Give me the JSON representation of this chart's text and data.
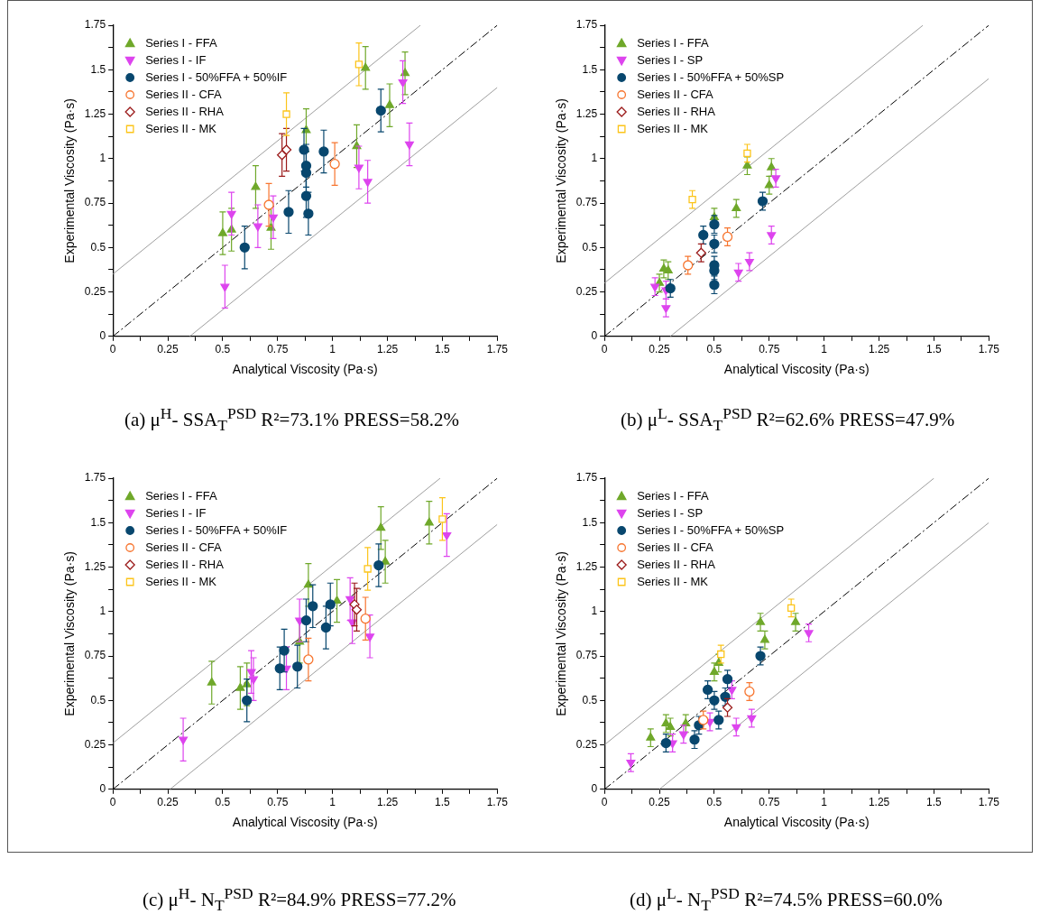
{
  "chart_data": [
    {
      "type": "scatter",
      "xlabel": "Analytical Viscosity (Pa·s)",
      "ylabel": "Experimental Viscosity (Pa·s)",
      "annotations": [
        "(a)  μ$^{H}$- SSA$_{T}$$^{PSD}$ R²=73.1% PRESS=58.2%"
      ],
      "legend": "top left",
      "xlim": [
        0,
        1.75
      ],
      "ylim": [
        0,
        1.75
      ],
      "xticks": [
        0,
        {
          "value": 0.125,
          "label": null
        },
        0.25,
        {
          "value": 0.375,
          "label": null
        },
        0.5,
        {
          "value": 0.625,
          "label": null
        },
        0.75,
        {
          "value": 0.875,
          "label": null
        },
        1,
        {
          "value": 1.125,
          "label": null
        },
        1.25,
        {
          "value": 1.375,
          "label": null
        },
        1.5,
        {
          "value": 1.625,
          "label": null
        },
        1.75
      ],
      "yticks": [
        0,
        {
          "value": 0.125,
          "label": null
        },
        0.25,
        {
          "value": 0.375,
          "label": null
        },
        0.5,
        {
          "value": 0.625,
          "label": null
        },
        0.75,
        {
          "value": 0.875,
          "label": null
        },
        1,
        {
          "value": 1.125,
          "label": null
        },
        1.25,
        {
          "value": 1.375,
          "label": null
        },
        1.5,
        {
          "value": 1.625,
          "label": null
        },
        1.75
      ],
      "series": [
        {
          "type": "line",
          "color": "#000000",
          "line_style": "dashed",
          "marker": "none",
          "x": [
            0,
            1.75
          ],
          "values": [
            0,
            1.75
          ]
        },
        {
          "type": "line",
          "color": "#9e9e9e",
          "line_style": "solid",
          "marker": "none",
          "x": [
            0,
            1.4
          ],
          "values": [
            0.35,
            1.75
          ]
        },
        {
          "type": "line",
          "color": "#9e9e9e",
          "line_style": "solid",
          "marker": "none",
          "x": [
            0.35,
            1.75
          ],
          "values": [
            0,
            1.4
          ]
        },
        {
          "name": "Series I - FFA",
          "color": "#6fa82a",
          "marker": "triangle",
          "x": [
            0.5,
            0.54,
            0.65,
            0.72,
            0.88,
            1.11,
            1.15,
            1.26,
            1.33
          ],
          "values": [
            0.58,
            0.6,
            0.84,
            0.61,
            1.16,
            1.07,
            1.51,
            1.3,
            1.48
          ],
          "errors": [
            0.12,
            0.12,
            0.12,
            0.12,
            0.12,
            0.12,
            0.12,
            0.12,
            0.12
          ]
        },
        {
          "name": "Series I - IF",
          "color": "#dd44ee",
          "marker": "triangle-down",
          "x": [
            0.51,
            0.54,
            0.66,
            0.73,
            1.12,
            1.16,
            1.32,
            1.35
          ],
          "values": [
            0.28,
            0.69,
            0.62,
            0.67,
            0.95,
            0.87,
            1.43,
            1.08
          ],
          "errors": [
            0.12,
            0.12,
            0.12,
            0.12,
            0.12,
            0.12,
            0.12,
            0.12
          ]
        },
        {
          "name": "Series I - 50%FFA + 50%IF",
          "color": "#08476e",
          "marker": "circle",
          "x": [
            0.6,
            0.8,
            0.87,
            0.88,
            0.88,
            0.88,
            0.89,
            0.96,
            1.22
          ],
          "values": [
            0.5,
            0.7,
            1.05,
            0.96,
            0.92,
            0.79,
            0.69,
            1.04,
            1.27
          ],
          "errors": [
            0.12,
            0.12,
            0.12,
            0.12,
            0.12,
            0.12,
            0.12,
            0.12,
            0.12
          ]
        },
        {
          "name": "Series II - CFA",
          "color": "#f7752f",
          "marker": "circle-open",
          "x": [
            0.71,
            1.01
          ],
          "values": [
            0.74,
            0.97
          ],
          "errors": [
            0.12,
            0.12
          ]
        },
        {
          "name": "Series II - RHA",
          "color": "#9b1b1b",
          "marker": "diamond-open",
          "x": [
            0.77,
            0.79
          ],
          "values": [
            1.02,
            1.05
          ],
          "errors": [
            0.12,
            0.12
          ]
        },
        {
          "name": "Series II - MK",
          "color": "#fcc419",
          "marker": "square-open",
          "x": [
            0.79,
            1.12
          ],
          "values": [
            1.25,
            1.53
          ],
          "errors": [
            0.12,
            0.12
          ]
        }
      ]
    },
    {
      "type": "scatter",
      "xlabel": "Analytical Viscosity (Pa·s)",
      "ylabel": "Experimental Viscosity (Pa·s)",
      "annotations": [
        "(b)  μ$^{L}$- SSA$_{T}$$^{PSD}$ R²=62.6% PRESS=47.9%"
      ],
      "legend": "top left",
      "xlim": [
        0,
        1.75
      ],
      "ylim": [
        0,
        1.75
      ],
      "xticks": [
        0,
        {
          "value": 0.125,
          "label": null
        },
        0.25,
        {
          "value": 0.375,
          "label": null
        },
        0.5,
        {
          "value": 0.625,
          "label": null
        },
        0.75,
        {
          "value": 0.875,
          "label": null
        },
        1,
        {
          "value": 1.125,
          "label": null
        },
        1.25,
        {
          "value": 1.375,
          "label": null
        },
        1.5,
        {
          "value": 1.625,
          "label": null
        },
        1.75
      ],
      "yticks": [
        0,
        {
          "value": 0.125,
          "label": null
        },
        0.25,
        {
          "value": 0.375,
          "label": null
        },
        0.5,
        {
          "value": 0.625,
          "label": null
        },
        0.75,
        {
          "value": 0.875,
          "label": null
        },
        1,
        {
          "value": 1.125,
          "label": null
        },
        1.25,
        {
          "value": 1.375,
          "label": null
        },
        1.5,
        {
          "value": 1.625,
          "label": null
        },
        1.75
      ],
      "series": [
        {
          "type": "line",
          "color": "#000000",
          "line_style": "dashed",
          "marker": "none",
          "x": [
            0,
            1.75
          ],
          "values": [
            0,
            1.75
          ]
        },
        {
          "type": "line",
          "color": "#9e9e9e",
          "line_style": "solid",
          "marker": "none",
          "x": [
            0,
            1.45
          ],
          "values": [
            0.3,
            1.75
          ]
        },
        {
          "type": "line",
          "color": "#9e9e9e",
          "line_style": "solid",
          "marker": "none",
          "x": [
            0.3,
            1.75
          ],
          "values": [
            0,
            1.45
          ]
        },
        {
          "name": "Series I - FFA",
          "color": "#6fa82a",
          "marker": "triangle",
          "x": [
            0.25,
            0.27,
            0.29,
            0.5,
            0.6,
            0.65,
            0.75,
            0.76
          ],
          "values": [
            0.3,
            0.38,
            0.37,
            0.67,
            0.72,
            0.96,
            0.85,
            0.95
          ],
          "errors": [
            0.05,
            0.05,
            0.05,
            0.05,
            0.05,
            0.05,
            0.05,
            0.05
          ]
        },
        {
          "name": "Series I - SP",
          "color": "#dd44ee",
          "marker": "triangle-down",
          "x": [
            0.23,
            0.28,
            0.28,
            0.61,
            0.66,
            0.76,
            0.78
          ],
          "values": [
            0.28,
            0.16,
            0.26,
            0.36,
            0.42,
            0.57,
            0.89
          ],
          "errors": [
            0.05,
            0.05,
            0.05,
            0.05,
            0.05,
            0.05,
            0.05
          ]
        },
        {
          "name": "Series I - 50%FFA + 50%SP",
          "color": "#08476e",
          "marker": "circle",
          "x": [
            0.3,
            0.45,
            0.5,
            0.5,
            0.5,
            0.5,
            0.5,
            0.72
          ],
          "values": [
            0.27,
            0.57,
            0.63,
            0.52,
            0.4,
            0.37,
            0.29,
            0.76
          ],
          "errors": [
            0.05,
            0.05,
            0.05,
            0.05,
            0.05,
            0.05,
            0.05,
            0.05
          ]
        },
        {
          "name": "Series II - CFA",
          "color": "#f7752f",
          "marker": "circle-open",
          "x": [
            0.38,
            0.56
          ],
          "values": [
            0.4,
            0.56
          ],
          "errors": [
            0.05,
            0.05
          ]
        },
        {
          "name": "Series II - RHA",
          "color": "#9b1b1b",
          "marker": "diamond-open",
          "x": [
            0.44
          ],
          "values": [
            0.47
          ],
          "errors": [
            0.05
          ]
        },
        {
          "name": "Series II - MK",
          "color": "#fcc419",
          "marker": "square-open",
          "x": [
            0.4,
            0.65
          ],
          "values": [
            0.77,
            1.03
          ],
          "errors": [
            0.05,
            0.05
          ]
        }
      ]
    },
    {
      "type": "scatter",
      "xlabel": "Analytical Viscosity (Pa·s)",
      "ylabel": "Experimental Viscosity (Pa·s)",
      "annotations": [
        "(c)  μ$^{H}$- N$_{T}$$^{PSD}$ R²=84.9% PRESS=77.2%"
      ],
      "legend": "top left",
      "xlim": [
        0,
        1.75
      ],
      "ylim": [
        0,
        1.75
      ],
      "xticks": [
        0,
        {
          "value": 0.125,
          "label": null
        },
        0.25,
        {
          "value": 0.375,
          "label": null
        },
        0.5,
        {
          "value": 0.625,
          "label": null
        },
        0.75,
        {
          "value": 0.875,
          "label": null
        },
        1,
        {
          "value": 1.125,
          "label": null
        },
        1.25,
        {
          "value": 1.375,
          "label": null
        },
        1.5,
        {
          "value": 1.625,
          "label": null
        },
        1.75
      ],
      "yticks": [
        0,
        {
          "value": 0.125,
          "label": null
        },
        0.25,
        {
          "value": 0.375,
          "label": null
        },
        0.5,
        {
          "value": 0.625,
          "label": null
        },
        0.75,
        {
          "value": 0.875,
          "label": null
        },
        1,
        {
          "value": 1.125,
          "label": null
        },
        1.25,
        {
          "value": 1.375,
          "label": null
        },
        1.5,
        {
          "value": 1.625,
          "label": null
        },
        1.75
      ],
      "series": [
        {
          "type": "line",
          "color": "#000000",
          "line_style": "dashed",
          "marker": "none",
          "x": [
            0,
            1.75
          ],
          "values": [
            0,
            1.75
          ]
        },
        {
          "type": "line",
          "color": "#9e9e9e",
          "line_style": "solid",
          "marker": "none",
          "x": [
            0,
            1.49
          ],
          "values": [
            0.26,
            1.75
          ]
        },
        {
          "type": "line",
          "color": "#9e9e9e",
          "line_style": "solid",
          "marker": "none",
          "x": [
            0.26,
            1.75
          ],
          "values": [
            0,
            1.49
          ]
        },
        {
          "name": "Series I - FFA",
          "color": "#6fa82a",
          "marker": "triangle",
          "x": [
            0.45,
            0.58,
            0.61,
            0.85,
            0.89,
            1.02,
            1.22,
            1.24,
            1.44
          ],
          "values": [
            0.6,
            0.57,
            0.59,
            0.83,
            1.15,
            1.06,
            1.47,
            1.28,
            1.5
          ],
          "errors": [
            0.12,
            0.12,
            0.12,
            0.12,
            0.12,
            0.12,
            0.12,
            0.12,
            0.12
          ]
        },
        {
          "name": "Series I - IF",
          "color": "#dd44ee",
          "marker": "triangle-down",
          "x": [
            0.32,
            0.63,
            0.64,
            0.79,
            0.85,
            1.08,
            1.09,
            1.17,
            1.52
          ],
          "values": [
            0.28,
            0.66,
            0.62,
            0.68,
            0.95,
            1.07,
            0.94,
            0.86,
            1.43
          ],
          "errors": [
            0.12,
            0.12,
            0.12,
            0.12,
            0.12,
            0.12,
            0.12,
            0.12,
            0.12
          ]
        },
        {
          "name": "Series I - 50%FFA + 50%IF",
          "color": "#08476e",
          "marker": "circle",
          "x": [
            0.61,
            0.76,
            0.78,
            0.84,
            0.88,
            0.91,
            0.97,
            0.99,
            1.21
          ],
          "values": [
            0.5,
            0.68,
            0.78,
            0.69,
            0.95,
            1.03,
            0.91,
            1.04,
            1.26
          ],
          "errors": [
            0.12,
            0.12,
            0.12,
            0.12,
            0.12,
            0.12,
            0.12,
            0.12,
            0.12
          ]
        },
        {
          "name": "Series II - CFA",
          "color": "#f7752f",
          "marker": "circle-open",
          "x": [
            0.89,
            1.15
          ],
          "values": [
            0.73,
            0.96
          ],
          "errors": [
            0.12,
            0.12
          ]
        },
        {
          "name": "Series II - RHA",
          "color": "#9b1b1b",
          "marker": "diamond-open",
          "x": [
            1.1,
            1.11
          ],
          "values": [
            1.04,
            1.01
          ],
          "errors": [
            0.12,
            0.12
          ]
        },
        {
          "name": "Series II - MK",
          "color": "#fcc419",
          "marker": "square-open",
          "x": [
            1.16,
            1.5
          ],
          "values": [
            1.24,
            1.52
          ],
          "errors": [
            0.12,
            0.12
          ]
        }
      ]
    },
    {
      "type": "scatter",
      "xlabel": "Analytical Viscosity (Pa·s)",
      "ylabel": "Experimental Viscosity (Pa·s)",
      "annotations": [
        "(d)  μ$^{L}$- N$_{T}$$^{PSD}$ R²=74.5% PRESS=60.0%"
      ],
      "legend": "top left",
      "xlim": [
        0,
        1.75
      ],
      "ylim": [
        0,
        1.75
      ],
      "xticks": [
        0,
        {
          "value": 0.125,
          "label": null
        },
        0.25,
        {
          "value": 0.375,
          "label": null
        },
        0.5,
        {
          "value": 0.625,
          "label": null
        },
        0.75,
        {
          "value": 0.875,
          "label": null
        },
        1,
        {
          "value": 1.125,
          "label": null
        },
        1.25,
        {
          "value": 1.375,
          "label": null
        },
        1.5,
        {
          "value": 1.625,
          "label": null
        },
        1.75
      ],
      "yticks": [
        0,
        {
          "value": 0.125,
          "label": null
        },
        0.25,
        {
          "value": 0.375,
          "label": null
        },
        0.5,
        {
          "value": 0.625,
          "label": null
        },
        0.75,
        {
          "value": 0.875,
          "label": null
        },
        1,
        {
          "value": 1.125,
          "label": null
        },
        1.25,
        {
          "value": 1.375,
          "label": null
        },
        1.5,
        {
          "value": 1.625,
          "label": null
        },
        1.75
      ],
      "series": [
        {
          "type": "line",
          "color": "#000000",
          "line_style": "dashed",
          "marker": "none",
          "x": [
            0,
            1.75
          ],
          "values": [
            0,
            1.75
          ]
        },
        {
          "type": "line",
          "color": "#9e9e9e",
          "line_style": "solid",
          "marker": "none",
          "x": [
            0,
            1.5
          ],
          "values": [
            0.25,
            1.75
          ]
        },
        {
          "type": "line",
          "color": "#9e9e9e",
          "line_style": "solid",
          "marker": "none",
          "x": [
            0.25,
            1.75
          ],
          "values": [
            0,
            1.5
          ]
        },
        {
          "name": "Series I - FFA",
          "color": "#6fa82a",
          "marker": "triangle",
          "x": [
            0.21,
            0.28,
            0.3,
            0.37,
            0.5,
            0.52,
            0.71,
            0.73,
            0.87
          ],
          "values": [
            0.29,
            0.37,
            0.35,
            0.37,
            0.66,
            0.71,
            0.94,
            0.84,
            0.94
          ],
          "errors": [
            0.05,
            0.05,
            0.05,
            0.05,
            0.05,
            0.05,
            0.05,
            0.05,
            0.05
          ]
        },
        {
          "name": "Series I - SP",
          "color": "#dd44ee",
          "marker": "triangle-down",
          "x": [
            0.12,
            0.31,
            0.36,
            0.48,
            0.58,
            0.6,
            0.67,
            0.93
          ],
          "values": [
            0.15,
            0.26,
            0.31,
            0.38,
            0.56,
            0.35,
            0.4,
            0.88
          ],
          "errors": [
            0.05,
            0.05,
            0.05,
            0.05,
            0.05,
            0.05,
            0.05,
            0.05
          ]
        },
        {
          "name": "Series I - 50%FFA + 50%SP",
          "color": "#08476e",
          "marker": "circle",
          "x": [
            0.28,
            0.41,
            0.43,
            0.47,
            0.5,
            0.52,
            0.55,
            0.56,
            0.71
          ],
          "values": [
            0.26,
            0.28,
            0.36,
            0.56,
            0.5,
            0.39,
            0.52,
            0.62,
            0.75
          ],
          "errors": [
            0.05,
            0.05,
            0.05,
            0.05,
            0.05,
            0.05,
            0.05,
            0.05,
            0.05
          ]
        },
        {
          "name": "Series II - CFA",
          "color": "#f7752f",
          "marker": "circle-open",
          "x": [
            0.45,
            0.66
          ],
          "values": [
            0.39,
            0.55
          ],
          "errors": [
            0.05,
            0.05
          ]
        },
        {
          "name": "Series II - RHA",
          "color": "#9b1b1b",
          "marker": "diamond-open",
          "x": [
            0.56
          ],
          "values": [
            0.46
          ],
          "errors": [
            0.05
          ]
        },
        {
          "name": "Series II - MK",
          "color": "#fcc419",
          "marker": "square-open",
          "x": [
            0.53,
            0.85
          ],
          "values": [
            0.76,
            1.02
          ],
          "errors": [
            0.05,
            0.05
          ]
        }
      ]
    }
  ]
}
